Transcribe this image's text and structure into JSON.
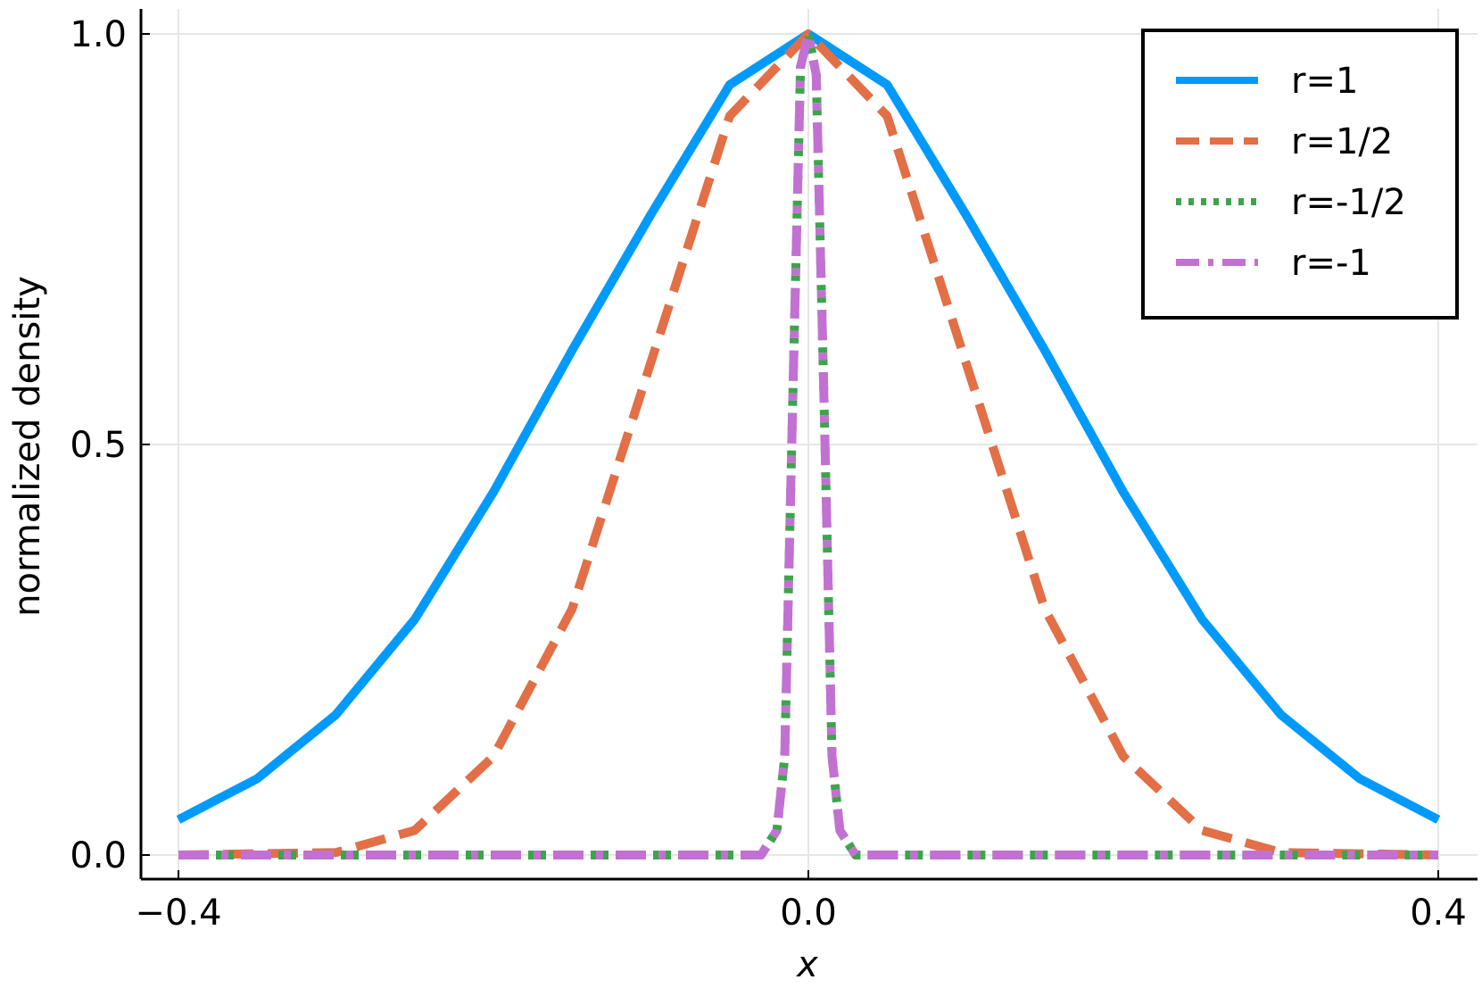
{
  "chart_data": {
    "type": "line",
    "xlabel": "x",
    "ylabel": "normalized density",
    "xlim": [
      -0.4,
      0.4
    ],
    "ylim": [
      0.0,
      1.0
    ],
    "xticks": [
      -0.4,
      0.0,
      0.4
    ],
    "xtick_labels": [
      "−0.4",
      "0.0",
      "0.4"
    ],
    "yticks": [
      0.0,
      0.5,
      1.0
    ],
    "ytick_labels": [
      "0.0",
      "0.5",
      "1.0"
    ],
    "grid": true,
    "legend_position": "top-right",
    "series": [
      {
        "name": "r=1",
        "color": "#009AFA",
        "dash": "solid",
        "x": [
          -0.4,
          -0.35,
          -0.3,
          -0.25,
          -0.2,
          -0.15,
          -0.1,
          -0.05,
          0.0,
          0.05,
          0.1,
          0.15,
          0.2,
          0.25,
          0.3,
          0.35,
          0.4
        ],
        "y": [
          0.043,
          0.093,
          0.171,
          0.287,
          0.442,
          0.615,
          0.78,
          0.938,
          1.0,
          0.938,
          0.78,
          0.615,
          0.442,
          0.287,
          0.171,
          0.093,
          0.043
        ]
      },
      {
        "name": "r=1/2",
        "color": "#E26F46",
        "dash": "dash",
        "x": [
          -0.4,
          -0.3,
          -0.25,
          -0.2,
          -0.15,
          -0.1,
          -0.05,
          0.0,
          0.05,
          0.1,
          0.15,
          0.2,
          0.25,
          0.3,
          0.4
        ],
        "y": [
          0.0,
          0.003,
          0.03,
          0.12,
          0.3,
          0.6,
          0.9,
          1.0,
          0.9,
          0.6,
          0.3,
          0.12,
          0.03,
          0.003,
          0.0
        ]
      },
      {
        "name": "r=-1/2",
        "color": "#3DA44D",
        "dash": "dot",
        "x": [
          -0.4,
          -0.03,
          -0.02,
          -0.015,
          -0.01,
          -0.005,
          0.0,
          0.005,
          0.01,
          0.015,
          0.02,
          0.03,
          0.4
        ],
        "y": [
          0.0,
          0.0,
          0.03,
          0.12,
          0.55,
          0.96,
          1.0,
          0.95,
          0.55,
          0.12,
          0.03,
          0.0,
          0.0
        ]
      },
      {
        "name": "r=-1",
        "color": "#C271D2",
        "dash": "dashdot",
        "x": [
          -0.4,
          -0.03,
          -0.02,
          -0.015,
          -0.01,
          -0.005,
          0.0,
          0.005,
          0.01,
          0.015,
          0.02,
          0.03,
          0.4
        ],
        "y": [
          0.0,
          0.0,
          0.03,
          0.12,
          0.55,
          0.96,
          1.0,
          0.95,
          0.55,
          0.12,
          0.03,
          0.0,
          0.0
        ]
      }
    ]
  }
}
